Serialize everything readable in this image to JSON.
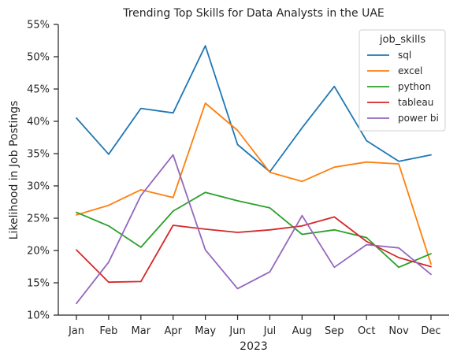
{
  "chart_data": {
    "type": "line",
    "title": "Trending Top Skills for Data Analysts in the UAE",
    "xlabel": "2023",
    "ylabel": "Likelihood in Job Postings",
    "categories": [
      "Jan",
      "Feb",
      "Mar",
      "Apr",
      "May",
      "Jun",
      "Jul",
      "Aug",
      "Sep",
      "Oct",
      "Nov",
      "Dec"
    ],
    "ylim": [
      10,
      55
    ],
    "yticks": [
      10,
      15,
      20,
      25,
      30,
      35,
      40,
      45,
      50,
      55
    ],
    "ytick_labels": [
      "10%",
      "15%",
      "20%",
      "25%",
      "30%",
      "35%",
      "40%",
      "45%",
      "50%",
      "55%"
    ],
    "grid": false,
    "legend": {
      "title": "job_skills",
      "placement": "top-right"
    },
    "series": [
      {
        "name": "sql",
        "color": "#1f77b4",
        "values": [
          40.5,
          34.9,
          42.0,
          41.3,
          51.7,
          36.4,
          32.2,
          39.0,
          45.4,
          37.0,
          33.8,
          34.8
        ]
      },
      {
        "name": "excel",
        "color": "#ff7f0e",
        "values": [
          25.5,
          27.0,
          29.4,
          28.2,
          42.8,
          38.6,
          32.1,
          30.7,
          32.9,
          33.7,
          33.4,
          17.9
        ]
      },
      {
        "name": "python",
        "color": "#2ca02c",
        "values": [
          25.9,
          23.8,
          20.5,
          26.1,
          29.0,
          27.7,
          26.6,
          22.5,
          23.2,
          22.0,
          17.4,
          19.5
        ]
      },
      {
        "name": "tableau",
        "color": "#d62728",
        "values": [
          20.1,
          15.1,
          15.2,
          23.9,
          23.3,
          22.8,
          23.2,
          23.8,
          25.2,
          21.4,
          18.9,
          17.5
        ]
      },
      {
        "name": "power bi",
        "color": "#9467bd",
        "values": [
          11.8,
          18.2,
          28.5,
          34.8,
          20.1,
          14.1,
          16.7,
          25.4,
          17.4,
          20.9,
          20.4,
          16.3
        ]
      }
    ]
  }
}
